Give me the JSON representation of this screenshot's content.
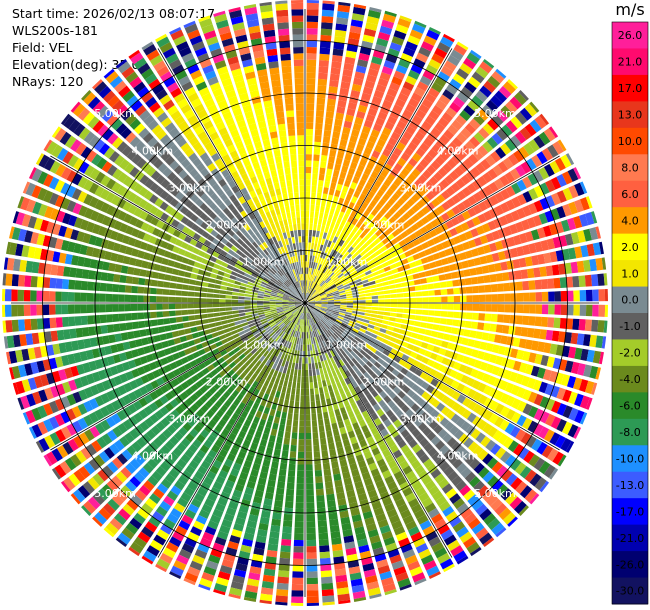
{
  "header": {
    "start_time": "Start time: 2026/02/13 08:07:17",
    "site": "WLS200s-181",
    "field": "Field: VEL",
    "elevation": "Elevation(deg): 35.00",
    "nrays": "NRays: 120"
  },
  "colorbar": {
    "unit": "m/s",
    "ticks": [
      "26.0",
      "21.0",
      "17.0",
      "13.0",
      "10.0",
      "8.0",
      "6.0",
      "4.0",
      "2.0",
      "1.0",
      "0.0",
      "-1.0",
      "-2.0",
      "-4.0",
      "-6.0",
      "-8.0",
      "-10.0",
      "-13.0",
      "-17.0",
      "-21.0",
      "-26.0",
      "-30.0"
    ],
    "colors": [
      "#ff1f9a",
      "#ff0a6e",
      "#ff0000",
      "#e8361c",
      "#ff4a00",
      "#ff7a50",
      "#ff6040",
      "#ff9900",
      "#ffff00",
      "#f3e600",
      "#7a8b92",
      "#606060",
      "#a4cc2a",
      "#6b8a1d",
      "#2a8a2a",
      "#2d9a55",
      "#1e90ff",
      "#3c5cff",
      "#0000ff",
      "#0000b0",
      "#000070",
      "#121260"
    ]
  },
  "chart_data": {
    "type": "ppi-radar-scan",
    "field": "VEL",
    "units": "m/s",
    "elevation_deg": 35.0,
    "n_rays": 120,
    "range_rings_km": [
      1.0,
      2.0,
      3.0,
      4.0,
      5.0
    ],
    "range_labels": [
      "1.00km",
      "2.00km",
      "3.00km",
      "4.00km",
      "5.00km"
    ],
    "radial_line_bearings_deg": [
      0,
      30,
      60,
      90,
      120,
      150,
      180,
      210,
      240,
      270,
      300,
      330
    ],
    "range_label_bearings_deg": [
      -45,
      45,
      135,
      225
    ],
    "colorscale_bounds_mps": [
      -30,
      -26,
      -21,
      -17,
      -13,
      -10,
      -8,
      -6,
      -4,
      -2,
      -1,
      0,
      1,
      2,
      4,
      6,
      8,
      10,
      13,
      17,
      21,
      26,
      30
    ],
    "velocity_pattern": {
      "description": "Approaching (yellow/orange, +) from north-east, receding (green, -) toward south-west; noise beyond ~4.5 km",
      "valid_range_km": 4.6,
      "max_range_km": 5.8
    }
  }
}
